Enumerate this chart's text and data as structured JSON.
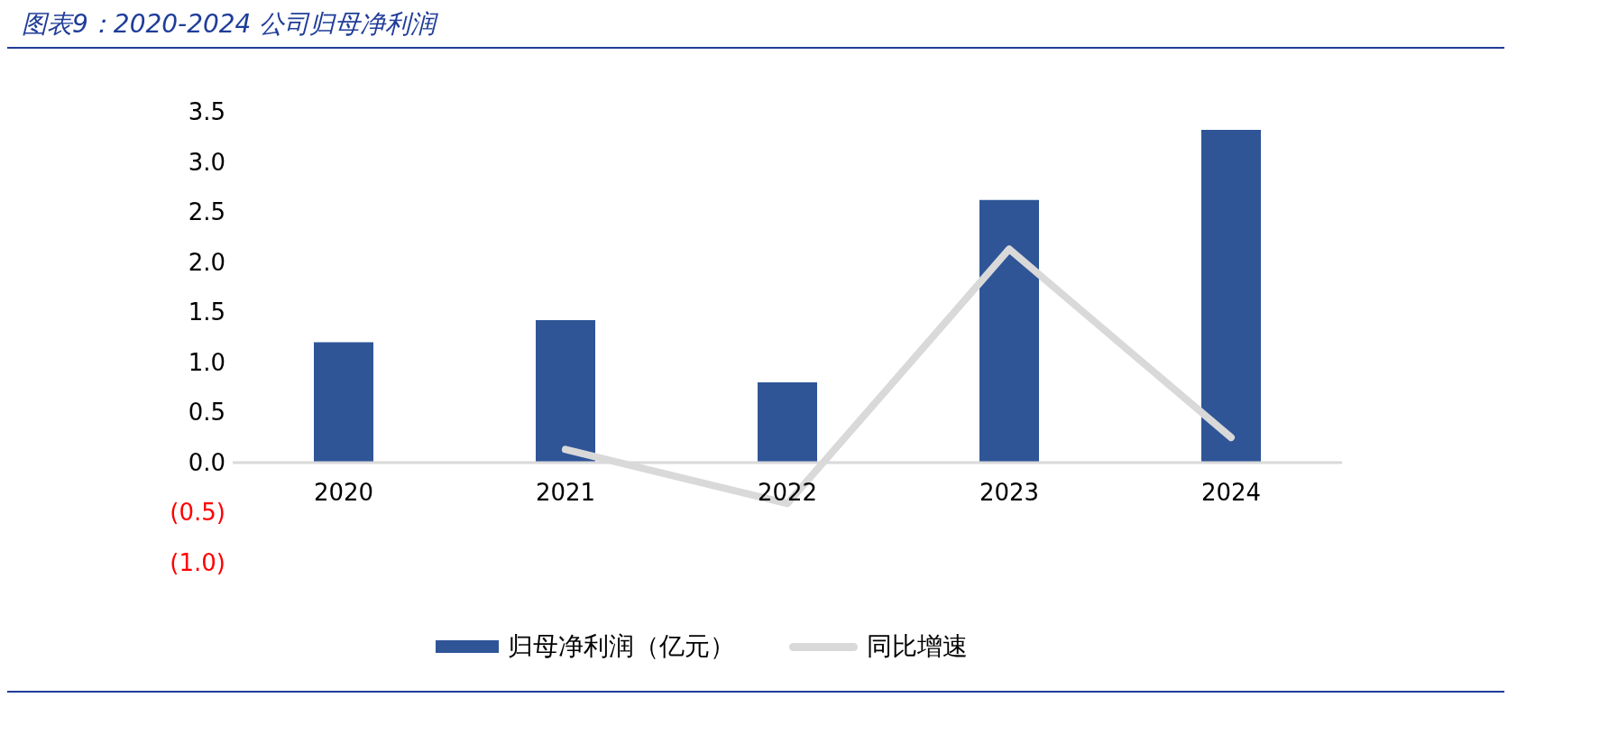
{
  "chart_data": {
    "type": "bar",
    "title": "图表9：2020-2024 公司归母净利润",
    "categories": [
      "2020",
      "2021",
      "2022",
      "2023",
      "2024"
    ],
    "series": [
      {
        "name": "归母净利润（亿元）",
        "color": "#2f5597",
        "values": [
          1.2,
          1.42,
          0.8,
          2.62,
          3.32
        ]
      },
      {
        "name": "同比增速",
        "type": "line",
        "color": "#d9d9d9",
        "values": [
          null,
          0.13,
          -0.41,
          2.13,
          0.25
        ]
      }
    ],
    "ylim": [
      -1.0,
      3.5
    ],
    "yticks": [
      {
        "value": -1.0,
        "label": "(1.0)"
      },
      {
        "value": -0.5,
        "label": "(0.5)"
      },
      {
        "value": 0,
        "label": "0.0"
      },
      {
        "value": 0.5,
        "label": "0.5"
      },
      {
        "value": 1.0,
        "label": "1.0"
      },
      {
        "value": 1.5,
        "label": "1.5"
      },
      {
        "value": 2.0,
        "label": "2.0"
      },
      {
        "value": 2.5,
        "label": "2.5"
      },
      {
        "value": 3.0,
        "label": "3.0"
      },
      {
        "value": 3.5,
        "label": "3.5"
      }
    ],
    "grid": false,
    "legend": "bottom",
    "marker": "none",
    "line_style": "solid"
  }
}
